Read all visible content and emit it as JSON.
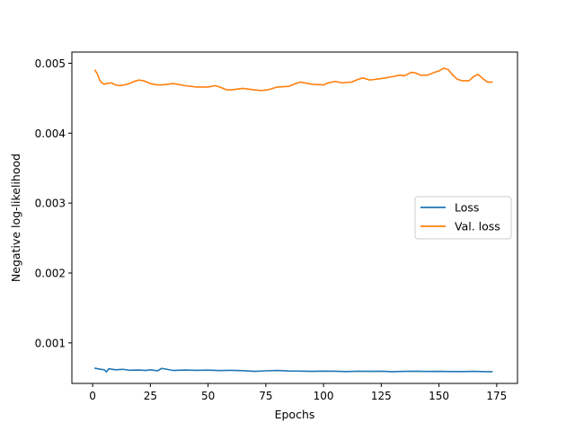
{
  "chart_data": {
    "type": "line",
    "xlabel": "Epochs",
    "ylabel": "Negative log-likelihood",
    "xlim": [
      -9,
      184
    ],
    "ylim": [
      0.00042,
      0.00516
    ],
    "x_ticks": [
      0,
      25,
      50,
      75,
      100,
      125,
      150,
      175
    ],
    "x_tick_labels": [
      "0",
      "25",
      "50",
      "75",
      "100",
      "125",
      "150",
      "175"
    ],
    "y_ticks": [
      0.001,
      0.002,
      0.003,
      0.004,
      0.005
    ],
    "y_tick_labels": [
      "0.001",
      "0.002",
      "0.003",
      "0.004",
      "0.005"
    ],
    "grid": false,
    "legend_position": "center-right",
    "series": [
      {
        "name": "Loss",
        "color": "#1f77b4",
        "x": [
          1,
          3,
          5,
          6,
          7,
          10,
          13,
          16,
          20,
          23,
          25,
          28,
          30,
          35,
          40,
          45,
          50,
          55,
          60,
          65,
          70,
          75,
          80,
          85,
          90,
          95,
          100,
          105,
          110,
          115,
          120,
          125,
          130,
          135,
          140,
          145,
          150,
          155,
          160,
          165,
          170,
          173
        ],
        "values": [
          0.000638,
          0.000625,
          0.000615,
          0.000585,
          0.00063,
          0.000615,
          0.000622,
          0.000608,
          0.000612,
          0.000605,
          0.000615,
          0.0006,
          0.000635,
          0.000605,
          0.000612,
          0.000607,
          0.00061,
          0.000604,
          0.000607,
          0.000602,
          0.000592,
          0.0006,
          0.000605,
          0.000598,
          0.000596,
          0.000592,
          0.000596,
          0.000594,
          0.00059,
          0.000594,
          0.000592,
          0.000594,
          0.000588,
          0.000592,
          0.000594,
          0.000591,
          0.000593,
          0.00059,
          0.00059,
          0.000592,
          0.000588,
          0.000588
        ]
      },
      {
        "name": "Val. loss",
        "color": "#ff7f0e",
        "x": [
          1,
          2,
          3,
          4,
          5,
          6,
          8,
          10,
          12,
          15,
          18,
          20,
          22,
          25,
          28,
          30,
          35,
          40,
          45,
          50,
          53,
          55,
          58,
          60,
          65,
          70,
          73,
          76,
          80,
          85,
          88,
          90,
          95,
          100,
          102,
          105,
          108,
          112,
          115,
          117,
          120,
          125,
          130,
          133,
          135,
          138,
          140,
          142,
          145,
          148,
          150,
          152,
          154,
          156,
          158,
          160,
          163,
          165,
          167,
          169,
          171,
          173
        ],
        "values": [
          0.0049,
          0.00485,
          0.00476,
          0.00472,
          0.0047,
          0.00471,
          0.00472,
          0.00469,
          0.00468,
          0.0047,
          0.00474,
          0.00476,
          0.00475,
          0.00471,
          0.00469,
          0.00469,
          0.00471,
          0.00468,
          0.00466,
          0.00466,
          0.00468,
          0.00466,
          0.00462,
          0.00462,
          0.00464,
          0.00462,
          0.00461,
          0.00462,
          0.00466,
          0.00467,
          0.00471,
          0.00473,
          0.0047,
          0.00469,
          0.00472,
          0.00474,
          0.00472,
          0.00473,
          0.00477,
          0.00479,
          0.00476,
          0.00478,
          0.00481,
          0.00483,
          0.00482,
          0.00487,
          0.00486,
          0.00483,
          0.00483,
          0.00487,
          0.00489,
          0.00493,
          0.00491,
          0.00483,
          0.00477,
          0.00475,
          0.00475,
          0.00481,
          0.00484,
          0.00478,
          0.00473,
          0.00473
        ]
      }
    ]
  }
}
